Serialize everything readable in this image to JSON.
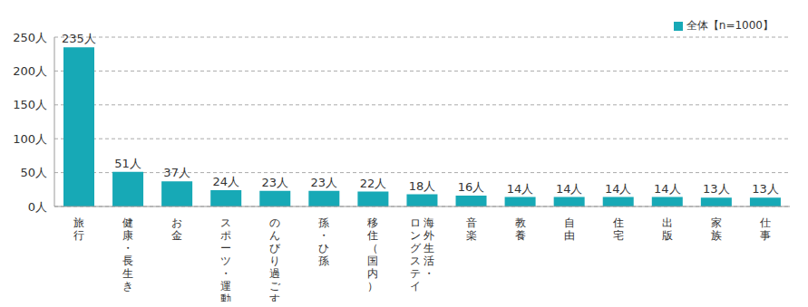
{
  "chart_data": {
    "type": "bar",
    "categories": [
      "旅行",
      "健康・長生き",
      "お金",
      "スポーツ・運動",
      "のんびり過ごす",
      "孫・ひ孫",
      "移住（国内）",
      "海外生活・ロングステイ",
      "音楽",
      "教養",
      "自由",
      "住宅",
      "出版",
      "家族",
      "仕事"
    ],
    "series": [
      {
        "name": "全体【n=1000】",
        "color": "#17a9b6",
        "values": [
          235,
          51,
          37,
          24,
          23,
          23,
          22,
          18,
          16,
          14,
          14,
          14,
          14,
          13,
          13
        ],
        "value_labels": [
          "235人",
          "51人",
          "37人",
          "24人",
          "23人",
          "23人",
          "22人",
          "18人",
          "16人",
          "14人",
          "14人",
          "14人",
          "14人",
          "13人",
          "13人"
        ]
      }
    ],
    "ylim": [
      0,
      250
    ],
    "yticks": [
      {
        "value": 0,
        "label": "0人"
      },
      {
        "value": 50,
        "label": "50人"
      },
      {
        "value": 100,
        "label": "100人"
      },
      {
        "value": 150,
        "label": "150人"
      },
      {
        "value": 200,
        "label": "200人"
      },
      {
        "value": 250,
        "label": "250人"
      }
    ],
    "grid": true,
    "legend": "upper right",
    "data_labels": true
  }
}
